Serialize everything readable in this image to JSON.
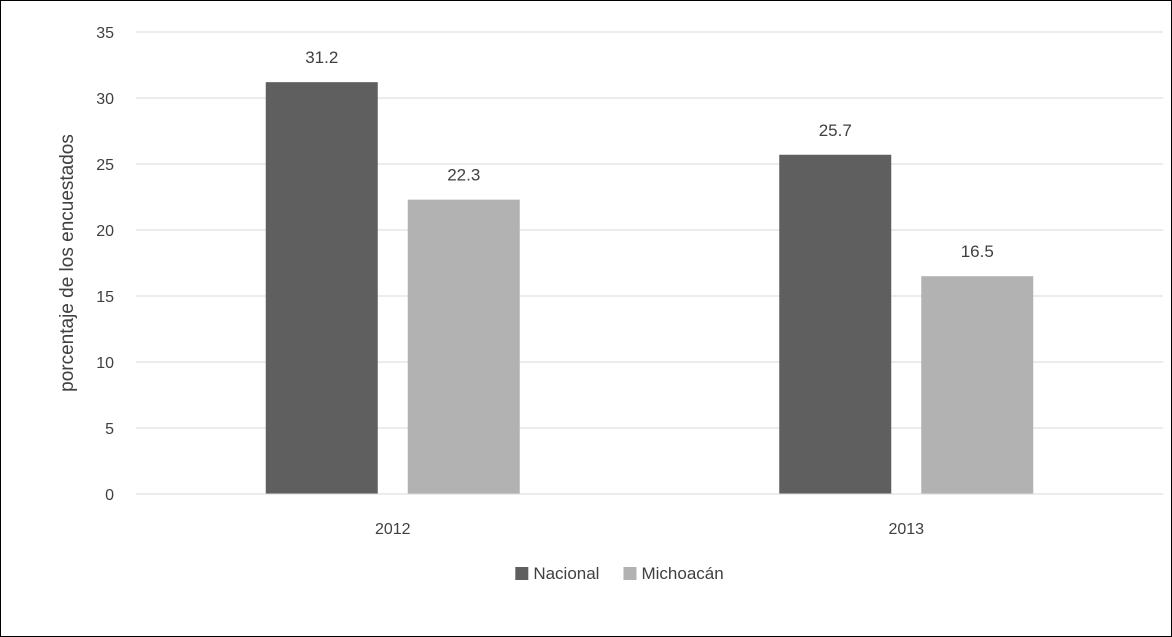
{
  "chart_data": {
    "type": "bar",
    "title": "",
    "xlabel": "",
    "ylabel": "porcentaje de los encuestados",
    "categories": [
      "2012",
      "2013"
    ],
    "series": [
      {
        "name": "Nacional",
        "values": [
          31.2,
          25.7
        ],
        "color": "#5f5f5f"
      },
      {
        "name": "Michoacán",
        "values": [
          22.3,
          16.5
        ],
        "color": "#b2b2b2"
      }
    ],
    "ylim": [
      0,
      35
    ],
    "yticks": [
      0,
      5,
      10,
      15,
      20,
      25,
      30,
      35
    ],
    "grid": true,
    "legend_position": "bottom"
  }
}
